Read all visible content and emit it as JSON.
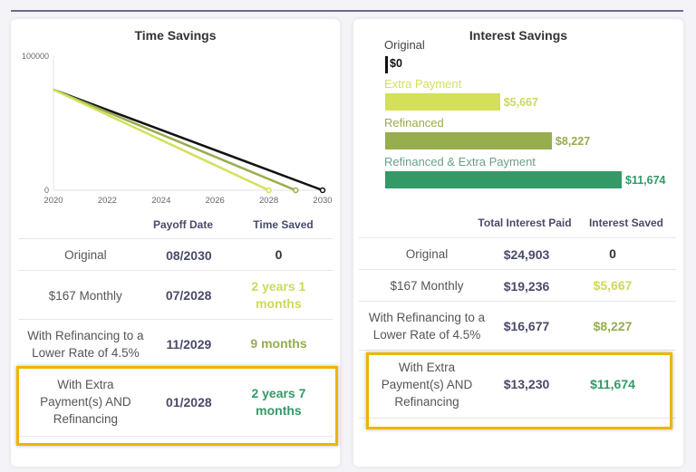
{
  "colors": {
    "original": "#111111",
    "extra": "#d4e05a",
    "refi": "#97ad4e",
    "both": "#339966"
  },
  "time": {
    "title": "Time Savings",
    "col_payoff": "Payoff Date",
    "col_saved": "Time Saved",
    "rows": [
      {
        "label": "Original",
        "payoff": "08/2030",
        "saved": "0"
      },
      {
        "label": "$167 Monthly",
        "payoff": "07/2028",
        "saved": "2 years 1 months"
      },
      {
        "label": "With Refinancing to a Lower Rate of 4.5%",
        "payoff": "11/2029",
        "saved": "9 months"
      },
      {
        "label": "With Extra Payment(s) AND Refinancing",
        "payoff": "01/2028",
        "saved": "2 years 7 months"
      }
    ]
  },
  "chart_data": {
    "type": "line",
    "title": "",
    "x_ticks": [
      "2020",
      "2022",
      "2024",
      "2026",
      "2028",
      "2030"
    ],
    "y_ticks": [
      "0",
      "100000"
    ],
    "xlim": [
      2020,
      2030
    ],
    "ylim": [
      0,
      100000
    ],
    "series": [
      {
        "name": "Original",
        "points": [
          [
            2020,
            75000
          ],
          [
            2030,
            0
          ]
        ]
      },
      {
        "name": "Refinanced",
        "points": [
          [
            2020,
            75000
          ],
          [
            2029,
            0
          ]
        ]
      },
      {
        "name": "Refinanced & Extra Payment",
        "points": [
          [
            2020,
            75000
          ],
          [
            2028,
            0
          ]
        ]
      }
    ]
  },
  "interest": {
    "title": "Interest Savings",
    "col_paid": "Total Interest Paid",
    "col_saved": "Interest Saved",
    "bars": [
      {
        "label": "Original",
        "value": 0,
        "text": "$0"
      },
      {
        "label": "Extra Payment",
        "value": 5667,
        "text": "$5,667"
      },
      {
        "label": "Refinanced",
        "value": 8227,
        "text": "$8,227"
      },
      {
        "label": "Refinanced & Extra Payment",
        "value": 11674,
        "text": "$11,674"
      }
    ],
    "rows": [
      {
        "label": "Original",
        "paid": "$24,903",
        "saved": "0"
      },
      {
        "label": "$167 Monthly",
        "paid": "$19,236",
        "saved": "$5,667"
      },
      {
        "label": "With Refinancing to a Lower Rate of 4.5%",
        "paid": "$16,677",
        "saved": "$8,227"
      },
      {
        "label": "With Extra Payment(s) AND Refinancing",
        "paid": "$13,230",
        "saved": "$11,674"
      }
    ]
  }
}
